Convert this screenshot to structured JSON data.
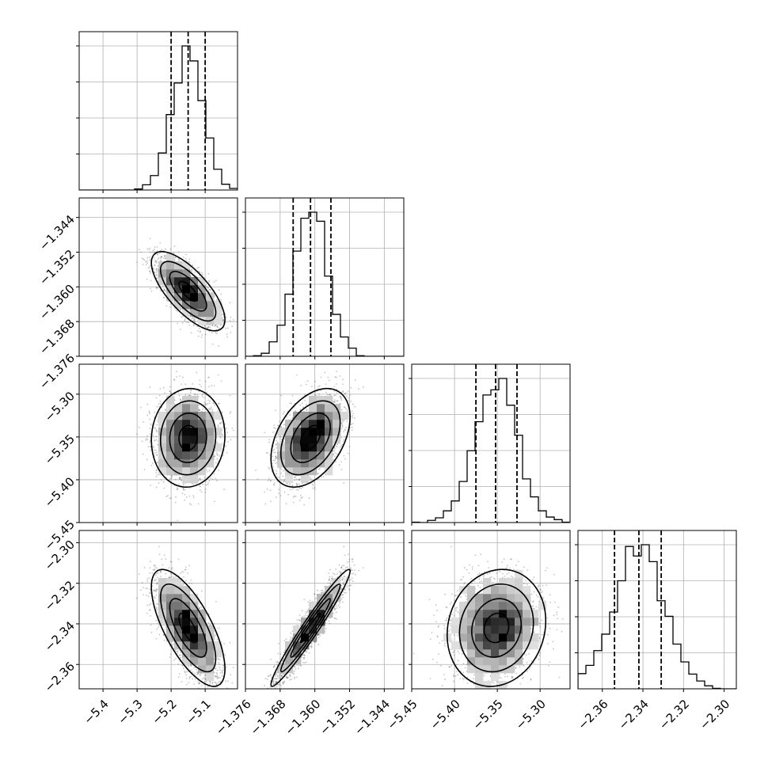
{
  "chart_data": {
    "type": "corner",
    "title": "",
    "grid": true,
    "legend": "none",
    "colors": {
      "hist": "#000000",
      "quantile": "#000000",
      "grid": "#b0b0b0",
      "points": "#555555",
      "density": "#000000"
    },
    "quantile_levels": [
      0.16,
      0.5,
      0.84
    ],
    "parameters": [
      {
        "label": "",
        "mean": -5.15,
        "sd": 0.045,
        "range": [
          -5.47,
          -5.005
        ],
        "ticks": [
          -5.4,
          -5.3,
          -5.2,
          -5.1
        ],
        "tick_labels": [
          "−5.4",
          "−5.3",
          "−5.2",
          "−5.1"
        ],
        "quantiles": [
          -5.2,
          -5.15,
          -5.1
        ]
      },
      {
        "label": "",
        "mean": -1.361,
        "sd": 0.0038,
        "range": [
          -1.376,
          -1.3395
        ],
        "ticks": [
          -1.376,
          -1.368,
          -1.36,
          -1.352,
          -1.344
        ],
        "tick_labels": [
          "−1.376",
          "−1.368",
          "−1.360",
          "−1.352",
          "−1.344"
        ],
        "quantiles": [
          -1.365,
          -1.361,
          -1.3563
        ]
      },
      {
        "label": "",
        "mean": -5.351,
        "sd": 0.024,
        "range": [
          -5.45,
          -5.265
        ],
        "ticks": [
          -5.45,
          -5.4,
          -5.35,
          -5.3
        ],
        "tick_labels": [
          "−5.45",
          "−5.40",
          "−5.35",
          "−5.30"
        ],
        "quantiles": [
          -5.375,
          -5.352,
          -5.327
        ]
      },
      {
        "label": "",
        "mean": -2.342,
        "sd": 0.012,
        "range": [
          -2.372,
          -2.294
        ],
        "ticks": [
          -2.36,
          -2.34,
          -2.32,
          -2.3
        ],
        "tick_labels": [
          "−2.36",
          "−2.34",
          "−2.32",
          "−2.30"
        ],
        "quantiles": [
          -2.354,
          -2.342,
          -2.331
        ]
      }
    ],
    "correlations": [
      {
        "pair": [
          0,
          1
        ],
        "rho": -0.72
      },
      {
        "pair": [
          0,
          2
        ],
        "rho": 0.05
      },
      {
        "pair": [
          0,
          3
        ],
        "rho": -0.7
      },
      {
        "pair": [
          1,
          2
        ],
        "rho": 0.42
      },
      {
        "pair": [
          1,
          3
        ],
        "rho": 0.97
      },
      {
        "pair": [
          2,
          3
        ],
        "rho": 0.12
      }
    ],
    "histogram_bins": 20
  }
}
